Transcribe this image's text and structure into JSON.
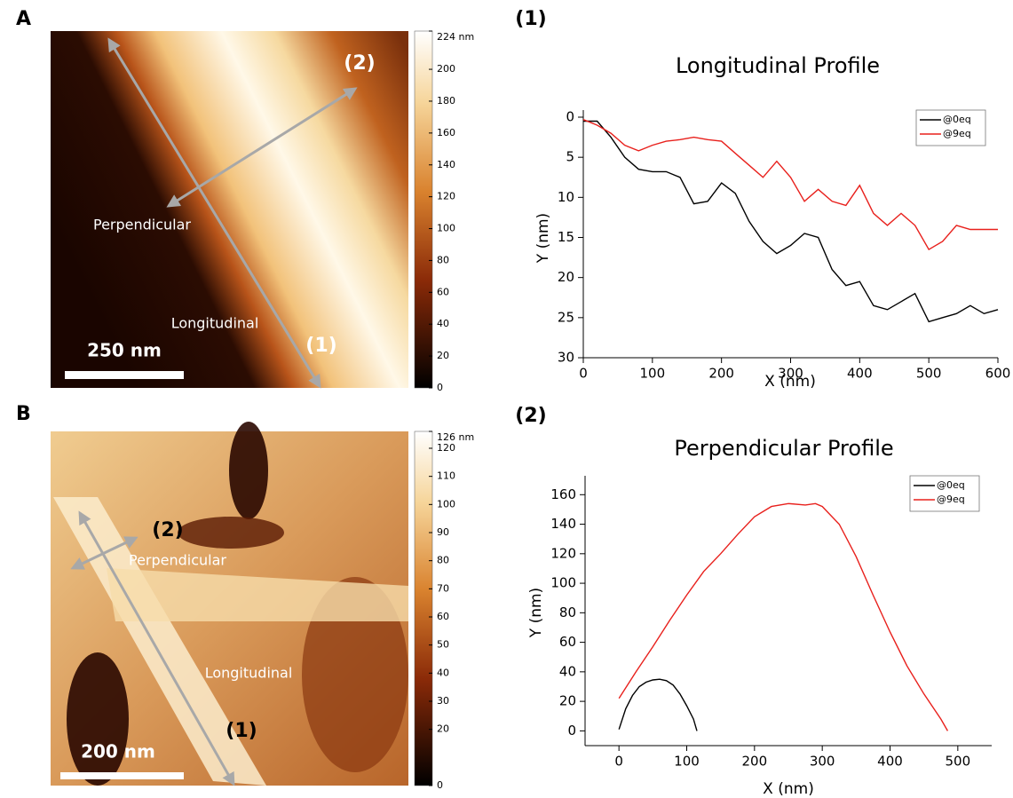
{
  "panels": {
    "A": {
      "label": "A",
      "scale_bar": "250 nm",
      "marker_2": "(2)",
      "perpendicular": "Perpendicular",
      "longitudinal": "Longitudinal",
      "marker_1": "(1)",
      "colorbar": {
        "lim": [
          0,
          224
        ],
        "ticks": [
          {
            "value": 224,
            "label": "224 nm"
          },
          200,
          180,
          160,
          140,
          120,
          100,
          80,
          60,
          40,
          20,
          0
        ]
      }
    },
    "B": {
      "label": "B",
      "scale_bar": "200 nm",
      "marker_2": "(2)",
      "perpendicular": "Perpendicular",
      "longitudinal": "Longitudinal",
      "marker_1": "(1)",
      "colorbar": {
        "lim": [
          0,
          126
        ],
        "ticks": [
          {
            "value": 126,
            "label": "126 nm"
          },
          120,
          110,
          100,
          90,
          80,
          70,
          60,
          50,
          40,
          30,
          20,
          0
        ]
      }
    }
  },
  "chart_data": [
    {
      "type": "line",
      "panel_label": "(1)",
      "title": "Longitudinal Profile",
      "x_label": "X (nm)",
      "y_label": "Y (nm)",
      "xlim": [
        0,
        600
      ],
      "xticks": [
        0,
        100,
        200,
        300,
        400,
        500,
        600
      ],
      "ylim": [
        30,
        0
      ],
      "yticks": [
        0,
        5,
        10,
        15,
        20,
        25,
        30
      ],
      "legend": "upper right",
      "series": [
        {
          "name": "@0eq",
          "color": "#000000",
          "x": [
            0,
            20,
            40,
            60,
            80,
            100,
            120,
            140,
            160,
            180,
            200,
            220,
            240,
            260,
            280,
            300,
            320,
            340,
            360,
            380,
            400,
            420,
            440,
            460,
            480,
            500,
            520,
            540,
            560,
            580,
            600
          ],
          "values": [
            0.5,
            0.5,
            2.5,
            5,
            6.5,
            6.8,
            6.8,
            7.5,
            10.8,
            10.5,
            8.2,
            9.5,
            13,
            15.5,
            17,
            16,
            14.5,
            15,
            19,
            21,
            20.5,
            23.5,
            24,
            23,
            22,
            25.5,
            25,
            24.5,
            23.5,
            24.5,
            24
          ]
        },
        {
          "name": "@9eq",
          "color": "#e8201c",
          "x": [
            0,
            20,
            40,
            60,
            80,
            100,
            120,
            140,
            160,
            180,
            200,
            220,
            240,
            260,
            280,
            300,
            320,
            340,
            360,
            380,
            400,
            420,
            440,
            460,
            480,
            500,
            520,
            540,
            560,
            580,
            600
          ],
          "values": [
            0.3,
            1,
            2,
            3.5,
            4.2,
            3.5,
            3,
            2.8,
            2.5,
            2.8,
            3,
            4.5,
            6,
            7.5,
            5.5,
            7.5,
            10.5,
            9,
            10.5,
            11,
            8.5,
            12,
            13.5,
            12,
            13.5,
            16.5,
            15.5,
            13.5,
            14,
            14,
            14
          ]
        }
      ]
    },
    {
      "type": "line",
      "panel_label": "(2)",
      "title": "Perpendicular Profile",
      "x_label": "X (nm)",
      "y_label": "Y (nm)",
      "xlim": [
        -50,
        550
      ],
      "xticks": [
        0,
        100,
        200,
        300,
        400,
        500
      ],
      "ylim": [
        -10,
        168
      ],
      "yticks": [
        0,
        20,
        40,
        60,
        80,
        100,
        120,
        140,
        160
      ],
      "legend": "upper right",
      "series": [
        {
          "name": "@0eq",
          "color": "#000000",
          "x": [
            0,
            10,
            20,
            30,
            40,
            50,
            60,
            70,
            80,
            90,
            100,
            110,
            115
          ],
          "values": [
            1,
            15,
            24,
            30,
            33,
            34.5,
            35,
            34,
            31,
            25,
            17,
            8,
            0
          ]
        },
        {
          "name": "@9eq",
          "color": "#e8201c",
          "x": [
            0,
            25,
            50,
            75,
            100,
            125,
            150,
            175,
            200,
            225,
            250,
            275,
            290,
            300,
            325,
            350,
            375,
            400,
            425,
            450,
            475,
            485
          ],
          "values": [
            22,
            40,
            57,
            75,
            92,
            108,
            120,
            133,
            145,
            152,
            154,
            153,
            154,
            152,
            140,
            118,
            92,
            67,
            44,
            25,
            8,
            0
          ]
        }
      ]
    }
  ]
}
